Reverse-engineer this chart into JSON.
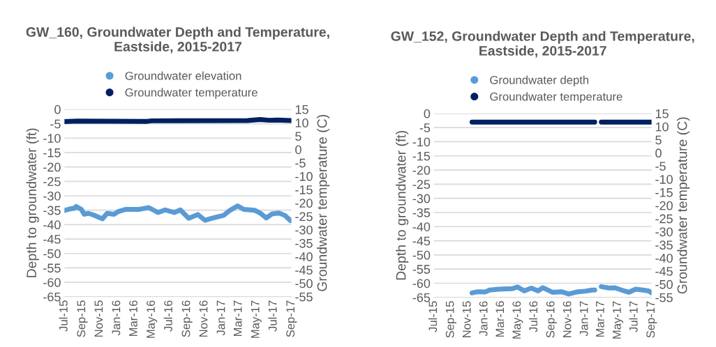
{
  "chart_data": [
    {
      "type": "line",
      "title": "GW_160, Groundwater Depth and Temperature, Eastside, 2015-2017",
      "ylabel": "Depth to groundwater (ft)",
      "y2label": "Groundwater temperature (C)",
      "series": [
        {
          "name": "Groundwater elevation",
          "color": "#5b9bd5",
          "x": [
            "2015-07-01",
            "2015-07-19",
            "2015-08-05",
            "2015-08-11",
            "2015-08-29",
            "2015-09-08",
            "2015-09-23",
            "2015-10-09",
            "2015-11-11",
            "2015-11-27",
            "2015-12-21",
            "2016-01-07",
            "2016-02-01",
            "2016-03-19",
            "2016-04-21",
            "2016-05-23",
            "2016-06-17",
            "2016-07-19",
            "2016-08-09",
            "2016-09-07",
            "2016-10-09",
            "2016-11-03",
            "2016-12-05",
            "2017-01-07",
            "2017-01-27",
            "2017-02-25",
            "2017-03-19",
            "2017-04-25",
            "2017-05-15",
            "2017-06-05",
            "2017-06-25",
            "2017-07-19",
            "2017-08-09",
            "2017-08-29"
          ],
          "values": [
            -35.1,
            -34.6,
            -34.3,
            -33.7,
            -34.7,
            -36.4,
            -36.1,
            -36.6,
            -38,
            -36.1,
            -36.4,
            -35.4,
            -34.7,
            -34.7,
            -34.1,
            -35.8,
            -34.9,
            -35.8,
            -34.9,
            -37.8,
            -36.5,
            -38.5,
            -37.6,
            -36.8,
            -35.2,
            -33.5,
            -34.7,
            -35,
            -36,
            -37.7,
            -36.3,
            -36,
            -36.8,
            -38.6
          ]
        },
        {
          "name": "Groundwater temperature",
          "color": "#002060",
          "axis": "y2",
          "x": [
            "2015-07-01",
            "2015-08-15",
            "2016-04-15",
            "2016-05-01",
            "2017-04-01",
            "2017-05-15",
            "2017-06-15",
            "2017-07-15",
            "2017-08-29"
          ],
          "values": [
            10.4,
            10.6,
            10.5,
            10.7,
            10.8,
            11.2,
            10.9,
            11.0,
            10.8
          ]
        }
      ],
      "xlim": [
        "2015-07-01",
        "2017-09-01"
      ],
      "xticks": [
        {
          "value": "2015-07-01",
          "label": "Jul-15"
        },
        {
          "value": "2015-09-01",
          "label": "Sep-15"
        },
        {
          "value": "2015-11-01",
          "label": "Nov-15"
        },
        {
          "value": "2016-01-01",
          "label": "Jan-16"
        },
        {
          "value": "2016-03-01",
          "label": "Mar-16"
        },
        {
          "value": "2016-05-01",
          "label": "May-16"
        },
        {
          "value": "2016-07-01",
          "label": "Jul-16"
        },
        {
          "value": "2016-09-01",
          "label": "Sep-16"
        },
        {
          "value": "2016-11-01",
          "label": "Nov-16"
        },
        {
          "value": "2017-01-01",
          "label": "Jan-17"
        },
        {
          "value": "2017-03-01",
          "label": "Mar-17"
        },
        {
          "value": "2017-05-01",
          "label": "May-17"
        },
        {
          "value": "2017-07-01",
          "label": "Jul-17"
        },
        {
          "value": "2017-09-01",
          "label": "Sep-17"
        }
      ],
      "ylim": [
        -65,
        0
      ],
      "yticks": [
        -65,
        -60,
        -55,
        -50,
        -45,
        -40,
        -35,
        -30,
        -25,
        -20,
        -15,
        -10,
        -5,
        0
      ],
      "y2lim": [
        -55,
        15
      ],
      "y2ticks": [
        -55,
        -50,
        -45,
        -40,
        -35,
        -30,
        -25,
        -20,
        -15,
        -10,
        -5,
        0,
        5,
        10,
        15
      ],
      "grid": "y",
      "legend": "top"
    },
    {
      "type": "line",
      "title": "GW_152, Groundwater Depth and Temperature, Eastside, 2015-2017",
      "ylabel": "Depth to groundwater (ft)",
      "y2label": "Groundwater temperature (C)",
      "series": [
        {
          "name": "Groundwater depth",
          "color": "#5b9bd5",
          "x": [
            "2015-11-17",
            "2015-12-08",
            "2016-01-03",
            "2016-01-20",
            "2016-02-23",
            "2016-04-13",
            "2016-04-30",
            "2016-05-25",
            "2016-06-20",
            "2016-07-15",
            "2016-08-01",
            "2016-09-05",
            "2016-10-08",
            "2016-11-03",
            "2016-12-07",
            "2017-01-02",
            "2017-01-27",
            "2017-02-06",
            "2017-02-18",
            "2017-03-02",
            "2017-03-30",
            "2017-04-20",
            "2017-05-24",
            "2017-06-10",
            "2017-07-05",
            "2017-07-30",
            "2017-08-21",
            "2017-09-01"
          ],
          "values": [
            -63.4,
            -63,
            -63.1,
            -62.4,
            -62.1,
            -61.9,
            -61.3,
            -62.7,
            -61.7,
            -62.7,
            -61.6,
            -63.2,
            -63,
            -63.8,
            -63,
            -62.8,
            -62.4,
            -62.4,
            null,
            -61.2,
            -61.7,
            -61.6,
            -62.7,
            -63.2,
            -62.1,
            -62.4,
            -62.7,
            -63.4
          ]
        },
        {
          "name": "Groundwater temperature",
          "color": "#002060",
          "axis": "y2",
          "x": [
            "2015-11-17",
            "2016-06-01",
            "2017-02-06",
            "2017-02-18",
            "2017-03-02",
            "2017-06-01",
            "2017-09-01"
          ],
          "values": [
            11.7,
            11.7,
            11.7,
            null,
            11.7,
            11.7,
            11.7
          ]
        }
      ],
      "xlim": [
        "2015-07-01",
        "2017-09-01"
      ],
      "xticks": [
        {
          "value": "2015-07-01",
          "label": "Jul-15"
        },
        {
          "value": "2015-09-01",
          "label": "Sep-15"
        },
        {
          "value": "2015-11-01",
          "label": "Nov-15"
        },
        {
          "value": "2016-01-01",
          "label": "Jan-16"
        },
        {
          "value": "2016-03-01",
          "label": "Mar-16"
        },
        {
          "value": "2016-05-01",
          "label": "May-16"
        },
        {
          "value": "2016-07-01",
          "label": "Jul-16"
        },
        {
          "value": "2016-09-01",
          "label": "Sep-16"
        },
        {
          "value": "2016-11-01",
          "label": "Nov-16"
        },
        {
          "value": "2017-01-01",
          "label": "Jan-17"
        },
        {
          "value": "2017-03-01",
          "label": "Mar-17"
        },
        {
          "value": "2017-05-01",
          "label": "May-17"
        },
        {
          "value": "2017-07-01",
          "label": "Jul-17"
        },
        {
          "value": "2017-09-01",
          "label": "Sep-17"
        }
      ],
      "ylim": [
        -65,
        0
      ],
      "yticks": [
        -65,
        -60,
        -55,
        -50,
        -45,
        -40,
        -35,
        -30,
        -25,
        -20,
        -15,
        -10,
        -5,
        0
      ],
      "y2lim": [
        -55,
        15
      ],
      "y2ticks": [
        -55,
        -50,
        -45,
        -40,
        -35,
        -30,
        -25,
        -20,
        -15,
        -10,
        -5,
        0,
        5,
        10,
        15
      ],
      "grid": "y",
      "legend": "top"
    }
  ]
}
